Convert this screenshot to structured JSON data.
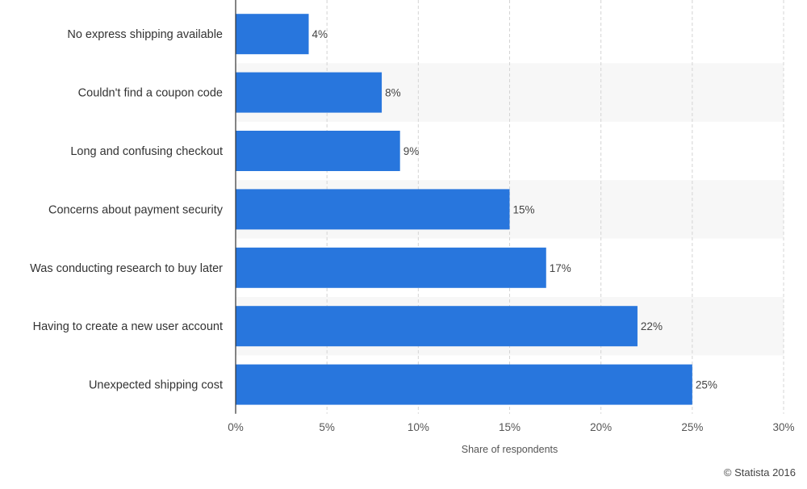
{
  "colors": {
    "bar": "#2876dd",
    "band": "#f7f7f7",
    "grid": "#d4d4d4",
    "axis_line": "#333333",
    "label_text": "#333333",
    "tick_text": "#555555",
    "value_text": "#444444"
  },
  "chart_data": {
    "type": "bar",
    "orientation": "horizontal",
    "categories": [
      "No express shipping available",
      "Couldn't find a coupon code",
      "Long and confusing checkout",
      "Concerns about payment security",
      "Was conducting research to buy later",
      "Having to create a new user account",
      "Unexpected shipping cost"
    ],
    "values": [
      4,
      8,
      9,
      15,
      17,
      22,
      25
    ],
    "value_labels": [
      "4%",
      "8%",
      "9%",
      "15%",
      "17%",
      "22%",
      "25%"
    ],
    "title": "",
    "xlabel": "Share of respondents",
    "ylabel": "",
    "xlim": [
      0,
      30
    ],
    "xticks": [
      0,
      5,
      10,
      15,
      20,
      25,
      30
    ],
    "xtick_labels": [
      "0%",
      "5%",
      "10%",
      "15%",
      "20%",
      "25%",
      "30%"
    ],
    "grid": true,
    "grid_style": "dashed vertical",
    "alternating_row_bands": true,
    "legend": "none"
  },
  "footer": {
    "credit": "© Statista 2016"
  }
}
